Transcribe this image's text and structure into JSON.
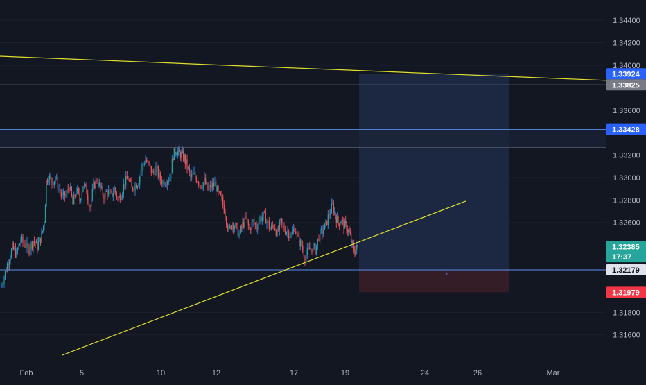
{
  "chart_data": {
    "type": "candlestick",
    "symbol_note": "",
    "x_tick_labels": [
      "Feb",
      "5",
      "10",
      "12",
      "17",
      "19",
      "24",
      "26",
      "Mar"
    ],
    "y_tick_labels": [
      "1.34400",
      "1.34200",
      "1.34000",
      "1.33600",
      "1.33200",
      "1.33000",
      "1.32800",
      "1.32600",
      "1.31800",
      "1.31600"
    ],
    "y_ticks": [
      1.344,
      1.342,
      1.34,
      1.336,
      1.332,
      1.33,
      1.328,
      1.326,
      1.318,
      1.316
    ],
    "ylim": [
      1.3137,
      1.3458
    ],
    "price_labels": [
      {
        "text": "1.33924",
        "value": 1.33924,
        "bg": "#2962ff",
        "fg": "#ffffff"
      },
      {
        "text": "1.33825",
        "value": 1.33825,
        "bg": "#787b86",
        "fg": "#ffffff"
      },
      {
        "text": "1.33428",
        "value": 1.33428,
        "bg": "#2962ff",
        "fg": "#ffffff"
      },
      {
        "text": "1.32385",
        "value": 1.32385,
        "bg": "#26a69a",
        "fg": "#ffffff"
      },
      {
        "text": "17:37",
        "value": 1.32295,
        "bg": "#26a69a",
        "fg": "#ffffff"
      },
      {
        "text": "1.32179",
        "value": 1.32179,
        "bg": "#e0e3eb",
        "fg": "#131722"
      },
      {
        "text": "1.31979",
        "value": 1.31979,
        "bg": "#f23645",
        "fg": "#ffffff"
      }
    ],
    "horizontal_lines": [
      {
        "value": 1.33825,
        "color": "#787b86"
      },
      {
        "value": 1.33428,
        "color": "#5b8def"
      },
      {
        "value": 1.33265,
        "color": "#787b86"
      },
      {
        "value": 1.32179,
        "color": "#5b8def"
      }
    ],
    "trendlines": [
      {
        "x": [
          "Jan 29",
          "Feb 29"
        ],
        "y": [
          1.3408,
          1.33865
        ],
        "color": "#e0e030"
      },
      {
        "x": [
          "Feb 1",
          "Feb 26"
        ],
        "y": [
          1.3142,
          1.3279
        ],
        "color": "#e0e030"
      }
    ],
    "position": {
      "type": "long",
      "entry": 1.32179,
      "target": 1.33924,
      "stop": 1.31979,
      "target_color": "#1e2c47",
      "stop_color": "#3a1e29"
    },
    "colors": {
      "up": "#26a69a",
      "down": "#ef5350",
      "wick_up": "#2962ff"
    },
    "candles_close_path": [
      [
        0,
        1.3202
      ],
      [
        6,
        1.3212
      ],
      [
        12,
        1.3226
      ],
      [
        18,
        1.3237
      ],
      [
        24,
        1.3232
      ],
      [
        30,
        1.3245
      ],
      [
        36,
        1.324
      ],
      [
        42,
        1.3236
      ],
      [
        48,
        1.3244
      ],
      [
        54,
        1.3239
      ],
      [
        60,
        1.3248
      ],
      [
        64,
        1.3262
      ],
      [
        67,
        1.3296
      ],
      [
        70,
        1.3302
      ],
      [
        75,
        1.3296
      ],
      [
        80,
        1.33
      ],
      [
        85,
        1.329
      ],
      [
        90,
        1.3282
      ],
      [
        95,
        1.3285
      ],
      [
        100,
        1.3293
      ],
      [
        105,
        1.3276
      ],
      [
        110,
        1.329
      ],
      [
        115,
        1.328
      ],
      [
        120,
        1.3294
      ],
      [
        125,
        1.3288
      ],
      [
        130,
        1.3275
      ],
      [
        135,
        1.3292
      ],
      [
        140,
        1.3298
      ],
      [
        145,
        1.329
      ],
      [
        150,
        1.3284
      ],
      [
        155,
        1.3288
      ],
      [
        160,
        1.3283
      ],
      [
        165,
        1.329
      ],
      [
        170,
        1.3281
      ],
      [
        175,
        1.3286
      ],
      [
        180,
        1.3296
      ],
      [
        185,
        1.3299
      ],
      [
        190,
        1.329
      ],
      [
        195,
        1.3293
      ],
      [
        200,
        1.3297
      ],
      [
        205,
        1.331
      ],
      [
        210,
        1.3316
      ],
      [
        215,
        1.331
      ],
      [
        220,
        1.3304
      ],
      [
        225,
        1.3308
      ],
      [
        230,
        1.33
      ],
      [
        235,
        1.3296
      ],
      [
        240,
        1.3298
      ],
      [
        245,
        1.33
      ],
      [
        250,
        1.332
      ],
      [
        254,
        1.3325
      ],
      [
        258,
        1.3322
      ],
      [
        262,
        1.332
      ],
      [
        266,
        1.3317
      ],
      [
        270,
        1.331
      ],
      [
        275,
        1.33
      ],
      [
        280,
        1.3302
      ],
      [
        285,
        1.3298
      ],
      [
        290,
        1.3293
      ],
      [
        295,
        1.3297
      ],
      [
        300,
        1.3289
      ],
      [
        305,
        1.3292
      ],
      [
        310,
        1.3294
      ],
      [
        315,
        1.3285
      ],
      [
        320,
        1.328
      ],
      [
        325,
        1.3268
      ],
      [
        330,
        1.3252
      ],
      [
        335,
        1.326
      ],
      [
        340,
        1.3256
      ],
      [
        345,
        1.325
      ],
      [
        350,
        1.3258
      ],
      [
        355,
        1.3262
      ],
      [
        360,
        1.3254
      ],
      [
        365,
        1.3261
      ],
      [
        370,
        1.3256
      ],
      [
        375,
        1.3264
      ],
      [
        380,
        1.3266
      ],
      [
        385,
        1.3262
      ],
      [
        390,
        1.3254
      ],
      [
        395,
        1.3258
      ],
      [
        400,
        1.325
      ],
      [
        405,
        1.326
      ],
      [
        410,
        1.3254
      ],
      [
        415,
        1.3252
      ],
      [
        420,
        1.3248
      ],
      [
        425,
        1.3256
      ],
      [
        430,
        1.3244
      ],
      [
        435,
        1.324
      ],
      [
        440,
        1.323
      ],
      [
        445,
        1.3235
      ],
      [
        450,
        1.3238
      ],
      [
        455,
        1.3236
      ],
      [
        460,
        1.3248
      ],
      [
        465,
        1.3252
      ],
      [
        470,
        1.3258
      ],
      [
        475,
        1.3268
      ],
      [
        480,
        1.3275
      ],
      [
        484,
        1.3266
      ],
      [
        488,
        1.326
      ],
      [
        492,
        1.3262
      ],
      [
        496,
        1.3258
      ],
      [
        500,
        1.3256
      ],
      [
        504,
        1.325
      ],
      [
        508,
        1.324
      ],
      [
        512,
        1.3234
      ],
      [
        516,
        1.32385
      ]
    ]
  }
}
